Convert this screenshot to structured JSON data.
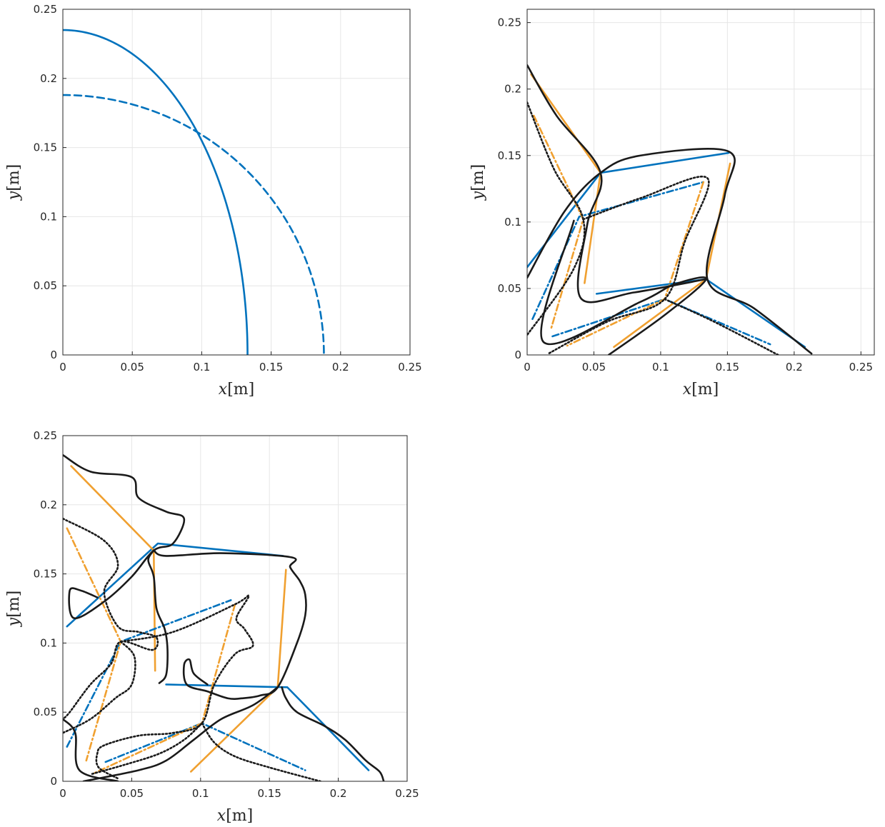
{
  "colors": {
    "blue": "#0072BD",
    "orange": "#EDB120",
    "orange_line": "#F0A030",
    "black": "#1a1a1a",
    "grid": "#e6e6e6",
    "axis": "#262626"
  },
  "chart_data": [
    {
      "type": "line",
      "xlabel": "x[m]",
      "ylabel": "y[m]",
      "xlim": [
        0,
        0.25
      ],
      "ylim": [
        0,
        0.25
      ],
      "xticks": [
        "0",
        "0.05",
        "0.1",
        "0.15",
        "0.2",
        "0.25"
      ],
      "yticks": [
        "0",
        "0.05",
        "0.1",
        "0.15",
        "0.2",
        "0.25"
      ],
      "grid": true,
      "series": [
        {
          "style": "solid",
          "color": "blue",
          "shape": "quarter-ellipse",
          "rx": 0.133,
          "ry": 0.235
        },
        {
          "style": "dashed",
          "color": "blue",
          "shape": "quarter-ellipse",
          "rx": 0.188,
          "ry": 0.188
        }
      ]
    },
    {
      "type": "line",
      "xlabel": "x[m]",
      "ylabel": "y[m]",
      "xlim": [
        0,
        0.26
      ],
      "ylim": [
        0,
        0.26
      ],
      "xticks": [
        "0",
        "0.05",
        "0.1",
        "0.15",
        "0.2",
        "0.25"
      ],
      "yticks": [
        "0",
        "0.05",
        "0.1",
        "0.15",
        "0.2",
        "0.25"
      ],
      "grid": true,
      "series": [
        {
          "style": "solid",
          "color": "blue",
          "points": [
            [
              0.0,
              0.066
            ],
            [
              0.055,
              0.137
            ],
            [
              0.151,
              0.152
            ]
          ]
        },
        {
          "style": "solid",
          "color": "blue",
          "points": [
            [
              0.052,
              0.046
            ],
            [
              0.134,
              0.057
            ],
            [
              0.208,
              0.006
            ]
          ]
        },
        {
          "style": "solid",
          "color": "orange",
          "points": [
            [
              0.003,
              0.211
            ],
            [
              0.055,
              0.137
            ],
            [
              0.043,
              0.054
            ]
          ]
        },
        {
          "style": "solid",
          "color": "orange",
          "points": [
            [
              0.152,
              0.144
            ],
            [
              0.134,
              0.057
            ],
            [
              0.065,
              0.006
            ]
          ]
        },
        {
          "style": "dashdot",
          "color": "blue",
          "points": [
            [
              0.004,
              0.027
            ],
            [
              0.039,
              0.104
            ],
            [
              0.132,
              0.13
            ]
          ]
        },
        {
          "style": "dashdot",
          "color": "blue",
          "points": [
            [
              0.019,
              0.014
            ],
            [
              0.103,
              0.042
            ],
            [
              0.182,
              0.008
            ]
          ]
        },
        {
          "style": "dashdot",
          "color": "orange",
          "points": [
            [
              0.005,
              0.18
            ],
            [
              0.042,
              0.102
            ],
            [
              0.018,
              0.02
            ]
          ]
        },
        {
          "style": "dashdot",
          "color": "orange",
          "points": [
            [
              0.132,
              0.13
            ],
            [
              0.103,
              0.042
            ],
            [
              0.03,
              0.007
            ]
          ]
        },
        {
          "style": "solid",
          "color": "black",
          "points": [
            [
              0.0,
              0.218
            ],
            [
              0.022,
              0.18
            ],
            [
              0.055,
              0.137
            ],
            [
              0.045,
              0.098
            ],
            [
              0.04,
              0.043
            ],
            [
              0.08,
              0.047
            ],
            [
              0.134,
              0.057
            ]
          ]
        },
        {
          "style": "solid",
          "color": "black",
          "points": [
            [
              0.0,
              0.058
            ],
            [
              0.028,
              0.108
            ],
            [
              0.055,
              0.137
            ],
            [
              0.085,
              0.15
            ],
            [
              0.151,
              0.153
            ],
            [
              0.148,
              0.12
            ],
            [
              0.135,
              0.057
            ],
            [
              0.17,
              0.035
            ],
            [
              0.213,
              0.001
            ]
          ]
        },
        {
          "style": "solid",
          "color": "black",
          "points": [
            [
              0.061,
              0.0
            ],
            [
              0.103,
              0.03
            ],
            [
              0.134,
              0.057
            ],
            [
              0.11,
              0.053
            ],
            [
              0.085,
              0.04
            ],
            [
              0.012,
              0.01
            ],
            [
              0.035,
              0.101
            ]
          ]
        },
        {
          "style": "dotted",
          "color": "black",
          "points": [
            [
              0.0,
              0.19
            ],
            [
              0.02,
              0.14
            ],
            [
              0.042,
              0.102
            ],
            [
              0.035,
              0.065
            ],
            [
              0.0,
              0.015
            ]
          ]
        },
        {
          "style": "dotted",
          "color": "black",
          "points": [
            [
              0.042,
              0.102
            ],
            [
              0.085,
              0.118
            ],
            [
              0.135,
              0.133
            ],
            [
              0.118,
              0.085
            ],
            [
              0.103,
              0.042
            ],
            [
              0.06,
              0.025
            ],
            [
              0.016,
              0.001
            ]
          ]
        },
        {
          "style": "dotted",
          "color": "black",
          "points": [
            [
              0.103,
              0.042
            ],
            [
              0.14,
              0.025
            ],
            [
              0.188,
              0.0
            ]
          ]
        }
      ]
    },
    {
      "type": "line",
      "xlabel": "x[m]",
      "ylabel": "y[m]",
      "xlim": [
        0,
        0.25
      ],
      "ylim": [
        0,
        0.25
      ],
      "xticks": [
        "0",
        "0.05",
        "0.1",
        "0.15",
        "0.2",
        "0.25"
      ],
      "yticks": [
        "0",
        "0.05",
        "0.1",
        "0.15",
        "0.2",
        "0.25"
      ],
      "grid": true,
      "series": [
        {
          "style": "solid",
          "color": "blue",
          "points": [
            [
              0.003,
              0.112
            ],
            [
              0.069,
              0.172
            ],
            [
              0.16,
              0.163
            ]
          ]
        },
        {
          "style": "solid",
          "color": "blue",
          "points": [
            [
              0.075,
              0.07
            ],
            [
              0.163,
              0.068
            ],
            [
              0.222,
              0.008
            ]
          ]
        },
        {
          "style": "solid",
          "color": "orange",
          "points": [
            [
              0.006,
              0.228
            ],
            [
              0.066,
              0.167
            ],
            [
              0.067,
              0.08
            ]
          ]
        },
        {
          "style": "solid",
          "color": "orange",
          "points": [
            [
              0.162,
              0.153
            ],
            [
              0.156,
              0.068
            ],
            [
              0.093,
              0.007
            ]
          ]
        },
        {
          "style": "dashdot",
          "color": "blue",
          "points": [
            [
              0.003,
              0.025
            ],
            [
              0.042,
              0.101
            ],
            [
              0.122,
              0.131
            ]
          ]
        },
        {
          "style": "dashdot",
          "color": "blue",
          "points": [
            [
              0.031,
              0.014
            ],
            [
              0.101,
              0.042
            ],
            [
              0.176,
              0.008
            ]
          ]
        },
        {
          "style": "dashdot",
          "color": "orange",
          "points": [
            [
              0.003,
              0.183
            ],
            [
              0.042,
              0.101
            ],
            [
              0.017,
              0.015
            ]
          ]
        },
        {
          "style": "dashdot",
          "color": "orange",
          "points": [
            [
              0.125,
              0.128
            ],
            [
              0.101,
              0.042
            ],
            [
              0.023,
              0.006
            ]
          ]
        },
        {
          "style": "solid",
          "color": "black",
          "points": [
            [
              0.0,
              0.236
            ],
            [
              0.02,
              0.224
            ],
            [
              0.05,
              0.22
            ],
            [
              0.055,
              0.205
            ],
            [
              0.075,
              0.195
            ],
            [
              0.088,
              0.19
            ],
            [
              0.08,
              0.172
            ],
            [
              0.066,
              0.167
            ],
            [
              0.05,
              0.148
            ],
            [
              0.03,
              0.13
            ],
            [
              0.008,
              0.118
            ],
            [
              0.005,
              0.138
            ],
            [
              0.013,
              0.138
            ],
            [
              0.025,
              0.133
            ]
          ]
        },
        {
          "style": "solid",
          "color": "black",
          "points": [
            [
              0.066,
              0.167
            ],
            [
              0.075,
              0.163
            ],
            [
              0.115,
              0.165
            ],
            [
              0.166,
              0.162
            ],
            [
              0.165,
              0.155
            ],
            [
              0.172,
              0.145
            ],
            [
              0.176,
              0.135
            ],
            [
              0.176,
              0.12
            ],
            [
              0.17,
              0.1
            ],
            [
              0.156,
              0.068
            ],
            [
              0.143,
              0.062
            ],
            [
              0.13,
              0.06
            ],
            [
              0.12,
              0.06
            ],
            [
              0.105,
              0.065
            ],
            [
              0.09,
              0.07
            ],
            [
              0.088,
              0.084
            ],
            [
              0.092,
              0.088
            ],
            [
              0.095,
              0.078
            ],
            [
              0.105,
              0.07
            ]
          ]
        },
        {
          "style": "solid",
          "color": "black",
          "points": [
            [
              0.07,
              0.071
            ],
            [
              0.075,
              0.077
            ],
            [
              0.076,
              0.095
            ],
            [
              0.074,
              0.11
            ],
            [
              0.068,
              0.125
            ],
            [
              0.066,
              0.148
            ],
            [
              0.062,
              0.16
            ],
            [
              0.066,
              0.167
            ]
          ]
        },
        {
          "style": "solid",
          "color": "black",
          "points": [
            [
              0.159,
              0.068
            ],
            [
              0.162,
              0.06
            ],
            [
              0.17,
              0.05
            ],
            [
              0.19,
              0.04
            ],
            [
              0.205,
              0.03
            ],
            [
              0.22,
              0.015
            ],
            [
              0.23,
              0.007
            ],
            [
              0.233,
              0.0
            ]
          ]
        },
        {
          "style": "solid",
          "color": "black",
          "points": [
            [
              0.156,
              0.068
            ],
            [
              0.138,
              0.055
            ],
            [
              0.115,
              0.045
            ],
            [
              0.095,
              0.03
            ],
            [
              0.075,
              0.015
            ],
            [
              0.055,
              0.008
            ],
            [
              0.015,
              0.0
            ]
          ]
        },
        {
          "style": "solid",
          "color": "black",
          "points": [
            [
              0.04,
              0.0
            ],
            [
              0.012,
              0.008
            ],
            [
              0.009,
              0.035
            ],
            [
              0.0,
              0.045
            ]
          ]
        },
        {
          "style": "dotted",
          "color": "black",
          "points": [
            [
              0.0,
              0.19
            ],
            [
              0.03,
              0.174
            ],
            [
              0.04,
              0.156
            ],
            [
              0.03,
              0.137
            ],
            [
              0.04,
              0.112
            ],
            [
              0.055,
              0.108
            ],
            [
              0.068,
              0.104
            ],
            [
              0.065,
              0.095
            ],
            [
              0.042,
              0.101
            ],
            [
              0.035,
              0.085
            ],
            [
              0.02,
              0.07
            ],
            [
              0.005,
              0.05
            ],
            [
              0.0,
              0.045
            ]
          ]
        },
        {
          "style": "dotted",
          "color": "black",
          "points": [
            [
              0.042,
              0.101
            ],
            [
              0.052,
              0.09
            ],
            [
              0.05,
              0.07
            ],
            [
              0.038,
              0.06
            ],
            [
              0.02,
              0.045
            ],
            [
              0.0,
              0.035
            ]
          ]
        },
        {
          "style": "dotted",
          "color": "black",
          "points": [
            [
              0.042,
              0.101
            ],
            [
              0.08,
              0.108
            ],
            [
              0.125,
              0.128
            ],
            [
              0.135,
              0.134
            ],
            [
              0.126,
              0.118
            ],
            [
              0.132,
              0.11
            ],
            [
              0.138,
              0.098
            ],
            [
              0.125,
              0.092
            ],
            [
              0.11,
              0.07
            ],
            [
              0.101,
              0.042
            ],
            [
              0.08,
              0.035
            ],
            [
              0.055,
              0.033
            ],
            [
              0.03,
              0.026
            ],
            [
              0.025,
              0.02
            ],
            [
              0.026,
              0.01
            ],
            [
              0.04,
              0.002
            ]
          ]
        },
        {
          "style": "dotted",
          "color": "black",
          "points": [
            [
              0.101,
              0.042
            ],
            [
              0.11,
              0.028
            ],
            [
              0.125,
              0.018
            ],
            [
              0.15,
              0.01
            ],
            [
              0.187,
              0.0
            ]
          ]
        },
        {
          "style": "dotted",
          "color": "black",
          "points": [
            [
              0.101,
              0.042
            ],
            [
              0.088,
              0.03
            ],
            [
              0.07,
              0.02
            ],
            [
              0.045,
              0.012
            ],
            [
              0.02,
              0.005
            ]
          ]
        }
      ]
    }
  ]
}
